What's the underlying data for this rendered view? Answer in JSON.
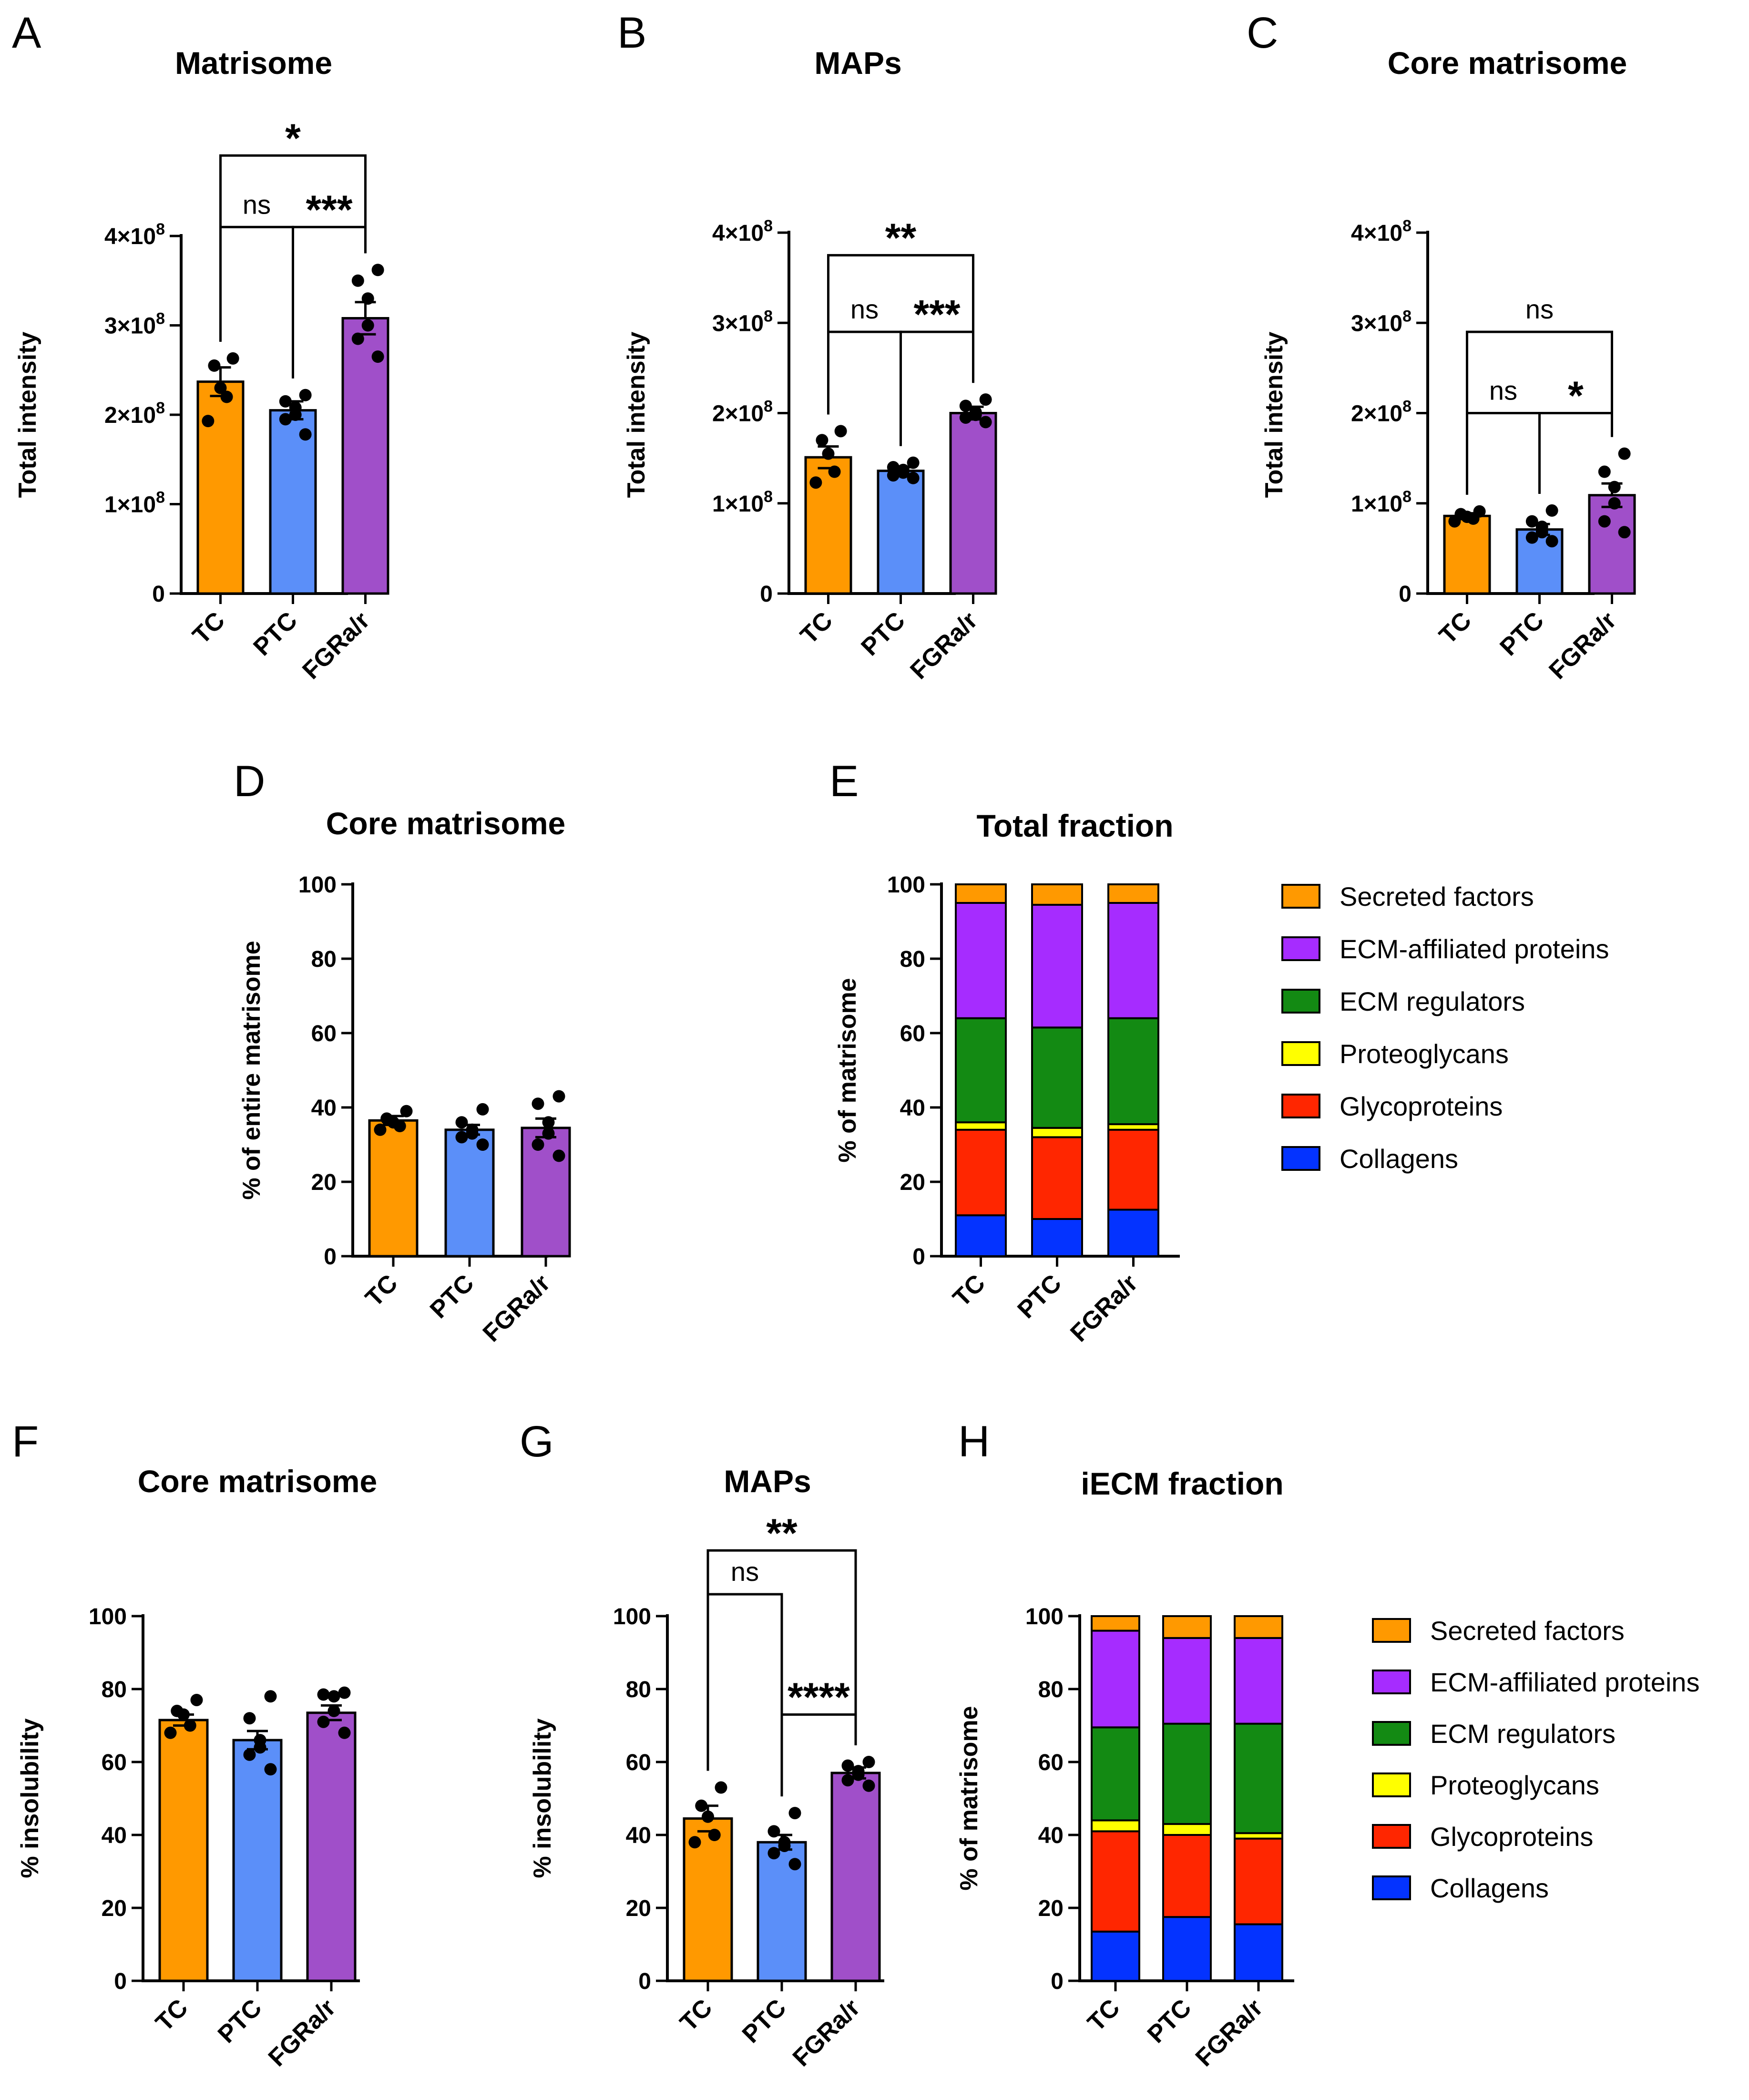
{
  "colors": {
    "TC": "#FF9900",
    "PTC": "#5B8FF9",
    "FGRa/r": "#A04FC9",
    "Secreted factors": "#FF9900",
    "ECM-affiliated proteins": "#A62CFF",
    "ECM regulators": "#138A13",
    "Proteoglycans": "#FFFF00",
    "Glycoproteins": "#FF2600",
    "Collagens": "#0433FF"
  },
  "chart_data": [
    {
      "id": "A",
      "letter": "A",
      "type": "bar",
      "title": "Matrisome",
      "ylabel": "Total intensity",
      "xlabel": "",
      "ylim": [
        0,
        400000000
      ],
      "yticks": [
        {
          "v": 0,
          "t": "0"
        },
        {
          "v": 100000000,
          "t": "1×10",
          "sup": "8"
        },
        {
          "v": 200000000,
          "t": "2×10",
          "sup": "8"
        },
        {
          "v": 300000000,
          "t": "3×10",
          "sup": "8"
        },
        {
          "v": 400000000,
          "t": "4×10",
          "sup": "8"
        }
      ],
      "categories": [
        "TC",
        "PTC",
        "FGRa/r"
      ],
      "values": [
        237000000,
        205000000,
        308000000
      ],
      "errors": [
        16000000,
        10000000,
        18000000
      ],
      "points": [
        [
          263000000,
          255000000,
          230000000,
          220000000,
          193000000
        ],
        [
          222000000,
          215000000,
          208000000,
          200000000,
          195000000,
          178000000
        ],
        [
          362000000,
          350000000,
          330000000,
          300000000,
          285000000,
          265000000
        ]
      ],
      "comparisons": [
        {
          "from": 0,
          "to": 1,
          "label": "ns",
          "y": 410000000,
          "style": "ns"
        },
        {
          "from": 1,
          "to": 2,
          "label": "***",
          "y": 410000000,
          "style": "sig"
        },
        {
          "from": 0,
          "to": 2,
          "label": "*",
          "y": 490000000,
          "style": "sig"
        }
      ]
    },
    {
      "id": "B",
      "letter": "B",
      "type": "bar",
      "title": "MAPs",
      "ylabel": "Total intensity",
      "xlabel": "",
      "ylim": [
        0,
        400000000
      ],
      "yticks": [
        {
          "v": 0,
          "t": "0"
        },
        {
          "v": 100000000,
          "t": "1×10",
          "sup": "8"
        },
        {
          "v": 200000000,
          "t": "2×10",
          "sup": "8"
        },
        {
          "v": 300000000,
          "t": "3×10",
          "sup": "8"
        },
        {
          "v": 400000000,
          "t": "4×10",
          "sup": "8"
        }
      ],
      "categories": [
        "TC",
        "PTC",
        "FGRa/r"
      ],
      "values": [
        151000000,
        136000000,
        200000000
      ],
      "errors": [
        12000000,
        4000000,
        7000000
      ],
      "points": [
        [
          180000000,
          170000000,
          155000000,
          135000000,
          123000000
        ],
        [
          145000000,
          140000000,
          137000000,
          134000000,
          131000000,
          128000000
        ],
        [
          215000000,
          208000000,
          201000000,
          198000000,
          195000000,
          190000000
        ]
      ],
      "comparisons": [
        {
          "from": 0,
          "to": 1,
          "label": "ns",
          "y": 290000000,
          "style": "ns"
        },
        {
          "from": 1,
          "to": 2,
          "label": "***",
          "y": 290000000,
          "style": "sig"
        },
        {
          "from": 0,
          "to": 2,
          "label": "**",
          "y": 375000000,
          "style": "sig"
        }
      ]
    },
    {
      "id": "C",
      "letter": "C",
      "type": "bar",
      "title": "Core matrisome",
      "ylabel": "Total intensity",
      "xlabel": "",
      "ylim": [
        0,
        400000000
      ],
      "yticks": [
        {
          "v": 0,
          "t": "0"
        },
        {
          "v": 100000000,
          "t": "1×10",
          "sup": "8"
        },
        {
          "v": 200000000,
          "t": "2×10",
          "sup": "8"
        },
        {
          "v": 300000000,
          "t": "3×10",
          "sup": "8"
        },
        {
          "v": 400000000,
          "t": "4×10",
          "sup": "8"
        }
      ],
      "categories": [
        "TC",
        "PTC",
        "FGRa/r"
      ],
      "values": [
        86000000,
        71000000,
        109000000
      ],
      "errors": [
        3000000,
        6000000,
        13000000
      ],
      "points": [
        [
          91000000,
          88000000,
          85000000,
          83000000,
          80000000
        ],
        [
          92000000,
          80000000,
          74000000,
          68000000,
          62000000,
          58000000
        ],
        [
          155000000,
          135000000,
          118000000,
          100000000,
          80000000,
          68000000
        ]
      ],
      "comparisons": [
        {
          "from": 0,
          "to": 1,
          "label": "ns",
          "y": 200000000,
          "style": "ns"
        },
        {
          "from": 1,
          "to": 2,
          "label": "*",
          "y": 200000000,
          "style": "sig"
        },
        {
          "from": 0,
          "to": 2,
          "label": "ns",
          "y": 290000000,
          "style": "ns"
        }
      ]
    },
    {
      "id": "D",
      "letter": "D",
      "type": "bar",
      "title": "Core matrisome",
      "ylabel": "% of entire matrisome",
      "xlabel": "",
      "ylim": [
        0,
        100
      ],
      "yticks": [
        {
          "v": 0,
          "t": "0"
        },
        {
          "v": 20,
          "t": "20"
        },
        {
          "v": 40,
          "t": "40"
        },
        {
          "v": 60,
          "t": "60"
        },
        {
          "v": 80,
          "t": "80"
        },
        {
          "v": 100,
          "t": "100"
        }
      ],
      "categories": [
        "TC",
        "PTC",
        "FGRa/r"
      ],
      "values": [
        36.5,
        34,
        34.5
      ],
      "errors": [
        1.2,
        1.3,
        2.5
      ],
      "points": [
        [
          39,
          37,
          36,
          35,
          34
        ],
        [
          39.5,
          36,
          34,
          33,
          32,
          30
        ],
        [
          43,
          41,
          36,
          33,
          30,
          27
        ]
      ],
      "comparisons": []
    },
    {
      "id": "E",
      "letter": "E",
      "type": "bar",
      "stacked": true,
      "title": "Total fraction",
      "ylabel": "% of matrisome",
      "xlabel": "",
      "ylim": [
        0,
        100
      ],
      "yticks": [
        {
          "v": 0,
          "t": "0"
        },
        {
          "v": 20,
          "t": "20"
        },
        {
          "v": 40,
          "t": "40"
        },
        {
          "v": 60,
          "t": "60"
        },
        {
          "v": 80,
          "t": "80"
        },
        {
          "v": 100,
          "t": "100"
        }
      ],
      "categories": [
        "TC",
        "PTC",
        "FGRa/r"
      ],
      "series": [
        {
          "name": "Collagens",
          "values": [
            11,
            10,
            12.5
          ]
        },
        {
          "name": "Glycoproteins",
          "values": [
            23,
            22,
            21.5
          ]
        },
        {
          "name": "Proteoglycans",
          "values": [
            2,
            2.5,
            1.5
          ]
        },
        {
          "name": "ECM regulators",
          "values": [
            28,
            27,
            28.5
          ]
        },
        {
          "name": "ECM-affiliated proteins",
          "values": [
            31,
            33,
            31
          ]
        },
        {
          "name": "Secreted factors",
          "values": [
            5,
            5.5,
            5
          ]
        }
      ],
      "legend": [
        "Secreted factors",
        "ECM-affiliated proteins",
        "ECM regulators",
        "Proteoglycans",
        "Glycoproteins",
        "Collagens"
      ]
    },
    {
      "id": "F",
      "letter": "F",
      "type": "bar",
      "title": "Core matrisome",
      "ylabel": "% insolubility",
      "xlabel": "",
      "ylim": [
        0,
        100
      ],
      "yticks": [
        {
          "v": 0,
          "t": "0"
        },
        {
          "v": 20,
          "t": "20"
        },
        {
          "v": 40,
          "t": "40"
        },
        {
          "v": 60,
          "t": "60"
        },
        {
          "v": 80,
          "t": "80"
        },
        {
          "v": 100,
          "t": "100"
        }
      ],
      "categories": [
        "TC",
        "PTC",
        "FGRa/r"
      ],
      "values": [
        71.5,
        66,
        73.5
      ],
      "errors": [
        1.5,
        2.5,
        2
      ],
      "points": [
        [
          77,
          74,
          73,
          70,
          68
        ],
        [
          78,
          72,
          66,
          64,
          62,
          58
        ],
        [
          79,
          78.5,
          78,
          74,
          71,
          68
        ]
      ],
      "comparisons": []
    },
    {
      "id": "G",
      "letter": "G",
      "type": "bar",
      "title": "MAPs",
      "ylabel": "% insolubility",
      "xlabel": "",
      "ylim": [
        0,
        100
      ],
      "yticks": [
        {
          "v": 0,
          "t": "0"
        },
        {
          "v": 20,
          "t": "20"
        },
        {
          "v": 40,
          "t": "40"
        },
        {
          "v": 60,
          "t": "60"
        },
        {
          "v": 80,
          "t": "80"
        },
        {
          "v": 100,
          "t": "100"
        }
      ],
      "categories": [
        "TC",
        "PTC",
        "FGRa/r"
      ],
      "values": [
        44.5,
        38,
        57
      ],
      "errors": [
        3.5,
        2,
        1.5
      ],
      "points": [
        [
          53,
          48,
          45,
          40,
          38
        ],
        [
          46,
          41,
          38,
          37,
          35,
          32
        ],
        [
          60,
          59,
          57.5,
          56.5,
          55,
          53.5
        ]
      ],
      "comparisons": [
        {
          "from": 0,
          "to": 1,
          "label": "ns",
          "y": 106,
          "style": "ns"
        },
        {
          "from": 1,
          "to": 2,
          "label": "****",
          "y": 73,
          "style": "sig",
          "open": "down"
        },
        {
          "from": 0,
          "to": 2,
          "label": "**",
          "y": 118,
          "style": "sig"
        }
      ]
    },
    {
      "id": "H",
      "letter": "H",
      "type": "bar",
      "stacked": true,
      "title": "iECM fraction",
      "ylabel": "% of matrisome",
      "xlabel": "",
      "ylim": [
        0,
        100
      ],
      "yticks": [
        {
          "v": 0,
          "t": "0"
        },
        {
          "v": 20,
          "t": "20"
        },
        {
          "v": 40,
          "t": "40"
        },
        {
          "v": 60,
          "t": "60"
        },
        {
          "v": 80,
          "t": "80"
        },
        {
          "v": 100,
          "t": "100"
        }
      ],
      "categories": [
        "TC",
        "PTC",
        "FGRa/r"
      ],
      "series": [
        {
          "name": "Collagens",
          "values": [
            13.5,
            17.5,
            15.5
          ]
        },
        {
          "name": "Glycoproteins",
          "values": [
            27.5,
            22.5,
            23.5
          ]
        },
        {
          "name": "Proteoglycans",
          "values": [
            3,
            3,
            1.5
          ]
        },
        {
          "name": "ECM regulators",
          "values": [
            25.5,
            27.5,
            30
          ]
        },
        {
          "name": "ECM-affiliated proteins",
          "values": [
            26.5,
            23.5,
            23.5
          ]
        },
        {
          "name": "Secreted factors",
          "values": [
            4,
            6,
            6
          ]
        }
      ],
      "legend": [
        "Secreted factors",
        "ECM-affiliated proteins",
        "ECM regulators",
        "Proteoglycans",
        "Glycoproteins",
        "Collagens"
      ]
    }
  ]
}
